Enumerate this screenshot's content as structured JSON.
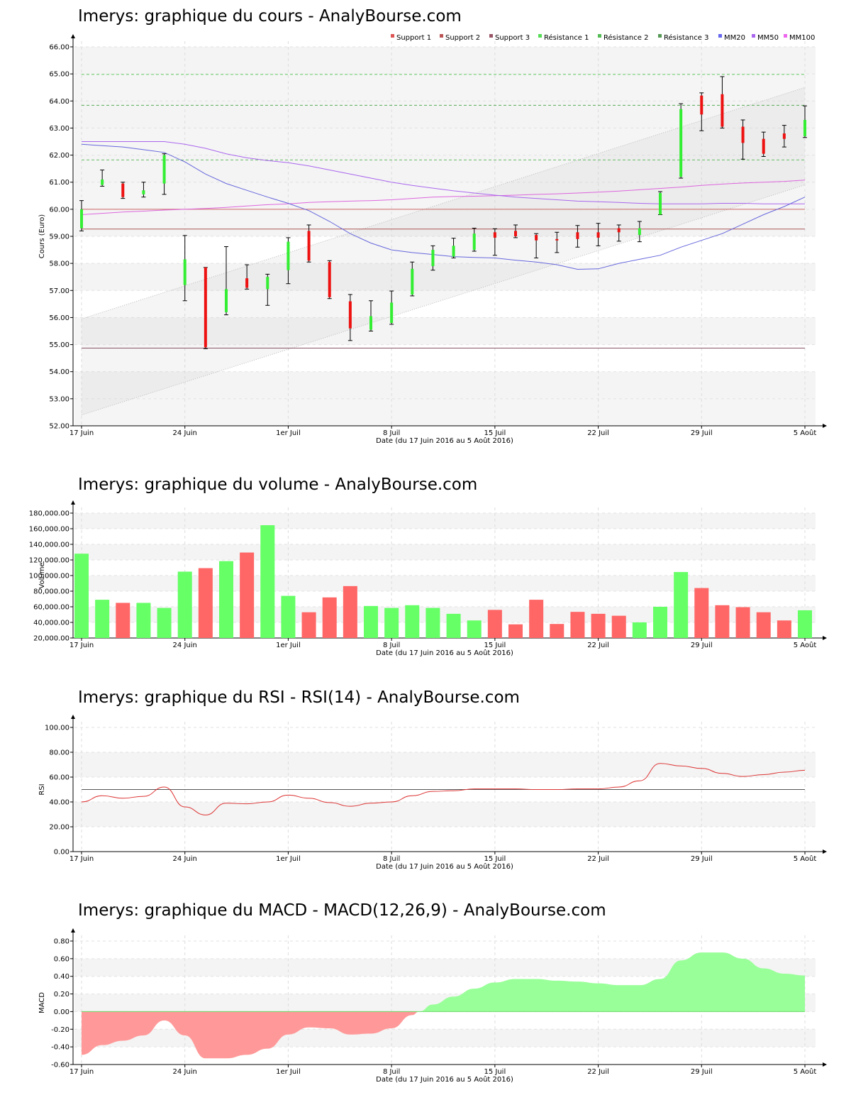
{
  "x_labels": [
    "17 Juin",
    "24 Juin",
    "1er Juil",
    "8 Juil",
    "15 Juil",
    "22 Juil",
    "29 Juil",
    "5 Août"
  ],
  "x_axis_label": "Date (du 17 Juin 2016 au 5 Août 2016)",
  "dates": [
    "17 Juin",
    "20 Juin",
    "21 Juin",
    "22 Juin",
    "23 Juin",
    "24 Juin",
    "27 Juin",
    "28 Juin",
    "29 Juin",
    "30 Juin",
    "1er Juil",
    "4 Juil",
    "5 Juil",
    "6 Juil",
    "7 Juil",
    "8 Juil",
    "11 Juil",
    "12 Juil",
    "13 Juil",
    "14 Juil",
    "15 Juil",
    "18 Juil",
    "19 Juil",
    "20 Juil",
    "21 Juil",
    "22 Juil",
    "25 Juil",
    "26 Juil",
    "27 Juil",
    "28 Juil",
    "29 Juil",
    "1 Août",
    "2 Août",
    "3 Août",
    "4 Août",
    "5 Août"
  ],
  "colors": {
    "up": "#33ee33",
    "down": "#ee1111",
    "volume_up": "#66ff66",
    "volume_down": "#ff6666",
    "mm20": "#6666dd",
    "mm50": "#aa66ee",
    "mm100": "#dd66dd",
    "rsi": "#dd3333",
    "macd_pos": "#99ff99",
    "macd_neg": "#ff9999"
  },
  "chart_data": [
    {
      "type": "candlestick",
      "title": "Imerys: graphique du cours - AnalyBourse.com",
      "ylabel": "Cours (Euro)",
      "xlabel": "Date (du 17 Juin 2016 au 5 Août 2016)",
      "ylim": [
        52,
        66
      ],
      "yticks": [
        "52.00",
        "53.00",
        "54.00",
        "55.00",
        "56.00",
        "57.00",
        "58.00",
        "59.00",
        "60.00",
        "61.00",
        "62.00",
        "63.00",
        "64.00",
        "65.00",
        "66.00"
      ],
      "legend_position": "top-right",
      "legend": [
        "Support 1",
        "Support 2",
        "Support 3",
        "Résistance 1",
        "Résistance 2",
        "Résistance 3",
        "MM20",
        "MM50",
        "MM100"
      ],
      "legend_colors": [
        "#dd5555",
        "#bb5555",
        "#995566",
        "#55dd55",
        "#55bb55",
        "#559955",
        "#6666ee",
        "#aa66ee",
        "#ee66ee"
      ],
      "support": [
        60.0,
        59.27,
        54.87
      ],
      "resistance": [
        61.82,
        63.84,
        64.98
      ],
      "candles": [
        [
          59.3,
          60.0,
          60.32,
          59.2,
          "up"
        ],
        [
          60.9,
          61.1,
          61.45,
          60.85,
          "up"
        ],
        [
          60.95,
          60.45,
          61.0,
          60.4,
          "down"
        ],
        [
          60.55,
          60.7,
          61.0,
          60.45,
          "up"
        ],
        [
          60.95,
          62.0,
          62.05,
          60.55,
          "up"
        ],
        [
          57.2,
          58.15,
          59.03,
          56.62,
          "up"
        ],
        [
          57.85,
          54.9,
          57.85,
          54.85,
          "down"
        ],
        [
          56.2,
          57.05,
          58.62,
          56.1,
          "up"
        ],
        [
          57.45,
          57.1,
          57.95,
          57.05,
          "down"
        ],
        [
          57.05,
          57.5,
          57.6,
          56.45,
          "up"
        ],
        [
          57.75,
          58.8,
          58.95,
          57.25,
          "up"
        ],
        [
          59.2,
          58.1,
          59.42,
          58.05,
          "down"
        ],
        [
          58.05,
          56.75,
          58.1,
          56.7,
          "down"
        ],
        [
          56.6,
          55.6,
          56.85,
          55.15,
          "down"
        ],
        [
          55.55,
          56.05,
          56.62,
          55.5,
          "up"
        ],
        [
          55.8,
          56.55,
          56.98,
          55.75,
          "up"
        ],
        [
          56.85,
          57.8,
          58.05,
          56.8,
          "up"
        ],
        [
          57.9,
          58.5,
          58.65,
          57.75,
          "up"
        ],
        [
          58.25,
          58.65,
          58.93,
          58.2,
          "up"
        ],
        [
          58.5,
          59.1,
          59.3,
          58.45,
          "up"
        ],
        [
          59.15,
          58.95,
          59.28,
          58.3,
          "down"
        ],
        [
          59.2,
          59.0,
          59.42,
          58.95,
          "down"
        ],
        [
          59.05,
          58.85,
          59.1,
          58.2,
          "down"
        ],
        [
          58.9,
          58.85,
          59.15,
          58.4,
          "down"
        ],
        [
          59.15,
          58.9,
          59.4,
          58.6,
          "down"
        ],
        [
          59.15,
          58.95,
          59.48,
          58.65,
          "down"
        ],
        [
          59.3,
          59.15,
          59.42,
          58.82,
          "down"
        ],
        [
          59.05,
          59.3,
          59.55,
          58.8,
          "up"
        ],
        [
          59.8,
          60.6,
          60.65,
          59.8,
          "up"
        ],
        [
          61.2,
          63.7,
          63.9,
          61.15,
          "up"
        ],
        [
          64.2,
          63.5,
          64.3,
          62.9,
          "down"
        ],
        [
          64.25,
          63.05,
          64.9,
          63.0,
          "down"
        ],
        [
          63.05,
          62.45,
          63.3,
          61.85,
          "down"
        ],
        [
          62.6,
          62.05,
          62.85,
          61.95,
          "down"
        ],
        [
          62.8,
          62.6,
          63.1,
          62.3,
          "down"
        ],
        [
          62.7,
          63.3,
          63.82,
          62.65,
          "up"
        ]
      ],
      "mm20": [
        62.4,
        62.35,
        62.3,
        62.2,
        62.1,
        61.75,
        61.3,
        60.95,
        60.7,
        60.45,
        60.22,
        59.95,
        59.55,
        59.1,
        58.75,
        58.5,
        58.4,
        58.33,
        58.25,
        58.22,
        58.2,
        58.12,
        58.05,
        57.95,
        57.78,
        57.8,
        58.0,
        58.15,
        58.3,
        58.6,
        58.85,
        59.1,
        59.45,
        59.8,
        60.1,
        60.45
      ],
      "mm50": [
        62.5,
        62.5,
        62.5,
        62.5,
        62.5,
        62.4,
        62.25,
        62.05,
        61.9,
        61.8,
        61.72,
        61.6,
        61.45,
        61.3,
        61.15,
        61.0,
        60.88,
        60.78,
        60.68,
        60.6,
        60.52,
        60.45,
        60.4,
        60.35,
        60.3,
        60.28,
        60.25,
        60.22,
        60.2,
        60.2,
        60.2,
        60.22,
        60.22,
        60.2,
        60.2,
        60.2
      ],
      "mm100": [
        59.8,
        59.85,
        59.9,
        59.93,
        59.97,
        60.0,
        60.03,
        60.07,
        60.12,
        60.17,
        60.2,
        60.25,
        60.28,
        60.3,
        60.32,
        60.35,
        60.4,
        60.45,
        60.47,
        60.48,
        60.5,
        60.52,
        60.55,
        60.57,
        60.6,
        60.63,
        60.67,
        60.72,
        60.77,
        60.82,
        60.88,
        60.93,
        60.97,
        61.0,
        61.03,
        61.08
      ],
      "channel": {
        "upper": [
          55.95,
          64.5
        ],
        "lower": [
          52.4,
          60.9
        ]
      },
      "shaded_bands": [
        [
          52,
          53
        ],
        [
          55,
          56
        ],
        [
          57,
          58
        ],
        [
          59,
          60
        ],
        [
          60,
          61
        ],
        [
          61,
          62
        ],
        [
          62,
          63
        ],
        [
          63,
          64
        ],
        [
          64,
          65
        ],
        [
          65,
          66
        ]
      ]
    },
    {
      "type": "bar",
      "title": "Imerys: graphique du volume - AnalyBourse.com",
      "ylabel": "Volume",
      "xlabel": "Date (du 17 Juin 2016 au 5 Août 2016)",
      "ylim": [
        20000,
        180000
      ],
      "yticks": [
        "20,000.00",
        "40,000.00",
        "60,000.00",
        "80,000.00",
        "100,000.00",
        "120,000.00",
        "140,000.00",
        "160,000.00",
        "180,000.00"
      ],
      "values": [
        128000,
        69000,
        65000,
        65000,
        58500,
        105000,
        109500,
        118500,
        129500,
        164500,
        74000,
        53000,
        72000,
        86500,
        61000,
        58500,
        62000,
        58500,
        51000,
        42500,
        56000,
        37500,
        69000,
        38000,
        53500,
        51000,
        48500,
        40000,
        60000,
        104500,
        84000,
        62000,
        59500,
        53000,
        42500,
        55500
      ],
      "directions": [
        "up",
        "up",
        "down",
        "up",
        "up",
        "up",
        "down",
        "up",
        "down",
        "up",
        "up",
        "down",
        "down",
        "down",
        "up",
        "up",
        "up",
        "up",
        "up",
        "up",
        "down",
        "down",
        "down",
        "down",
        "down",
        "down",
        "down",
        "up",
        "up",
        "up",
        "down",
        "down",
        "down",
        "down",
        "down",
        "up"
      ]
    },
    {
      "type": "line",
      "title": "Imerys: graphique du RSI - RSI(14) - AnalyBourse.com",
      "ylabel": "RSI",
      "xlabel": "Date (du 17 Juin 2016 au 5 Août 2016)",
      "ylim": [
        0,
        100
      ],
      "yticks": [
        "0.00",
        "20.00",
        "40.00",
        "60.00",
        "80.00",
        "100.00"
      ],
      "reference_line": 50,
      "values": [
        40,
        45,
        43,
        44.5,
        52,
        36,
        29.5,
        39,
        38.5,
        40,
        45.5,
        43,
        39.5,
        36.5,
        39,
        40,
        45,
        48.5,
        49,
        50.5,
        50.5,
        50.5,
        50,
        50,
        50.5,
        50.5,
        52,
        57,
        71,
        69,
        67,
        63,
        60.5,
        62,
        64,
        65.5
      ]
    },
    {
      "type": "area",
      "title": "Imerys: graphique du MACD - MACD(12,26,9) - AnalyBourse.com",
      "ylabel": "MACD",
      "xlabel": "Date (du 17 Juin 2016 au 5 Août 2016)",
      "ylim": [
        -0.6,
        0.8
      ],
      "yticks": [
        "-0.60",
        "-0.40",
        "-0.20",
        "0.00",
        "0.20",
        "0.40",
        "0.60",
        "0.80"
      ],
      "values": [
        -0.49,
        -0.38,
        -0.33,
        -0.27,
        -0.1,
        -0.27,
        -0.53,
        -0.53,
        -0.49,
        -0.42,
        -0.26,
        -0.18,
        -0.19,
        -0.26,
        -0.25,
        -0.19,
        -0.04,
        0.08,
        0.17,
        0.26,
        0.33,
        0.37,
        0.37,
        0.35,
        0.34,
        0.32,
        0.3,
        0.3,
        0.37,
        0.58,
        0.67,
        0.67,
        0.6,
        0.49,
        0.43,
        0.41
      ]
    }
  ]
}
